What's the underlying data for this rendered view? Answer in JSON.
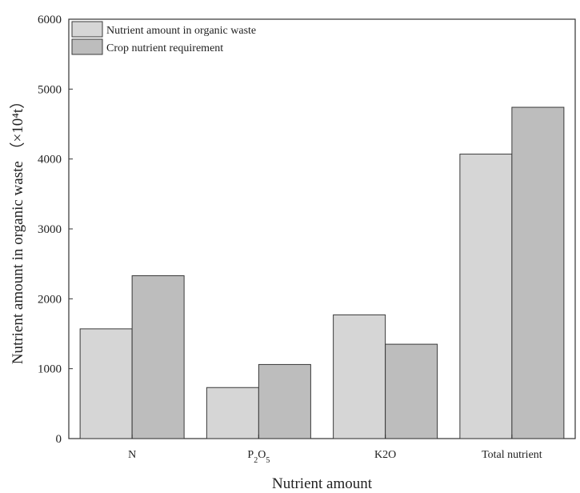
{
  "chart_data": {
    "type": "bar",
    "categories": [
      "N",
      "P2O5",
      "K2O",
      "Total nutrient"
    ],
    "series": [
      {
        "name": "Nutrient amount in organic waste",
        "values": [
          1570,
          730,
          1770,
          4070
        ],
        "color": "#d6d6d6"
      },
      {
        "name": "Crop nutrient requirement",
        "values": [
          2330,
          1060,
          1350,
          4740
        ],
        "color": "#bdbdbd"
      }
    ],
    "xlabel": "Nutrient amount",
    "ylabel": "Nutrient amount in organic waste （×10⁴t）",
    "ylim": [
      0,
      6000
    ],
    "yticks": [
      0,
      1000,
      2000,
      3000,
      4000,
      5000,
      6000
    ],
    "ytick_labels": [
      "0",
      "1000",
      "2000",
      "3000",
      "4000",
      "5000",
      "6000"
    ],
    "grid": false,
    "legend_position": "top-left",
    "frame_color": "#333333"
  }
}
